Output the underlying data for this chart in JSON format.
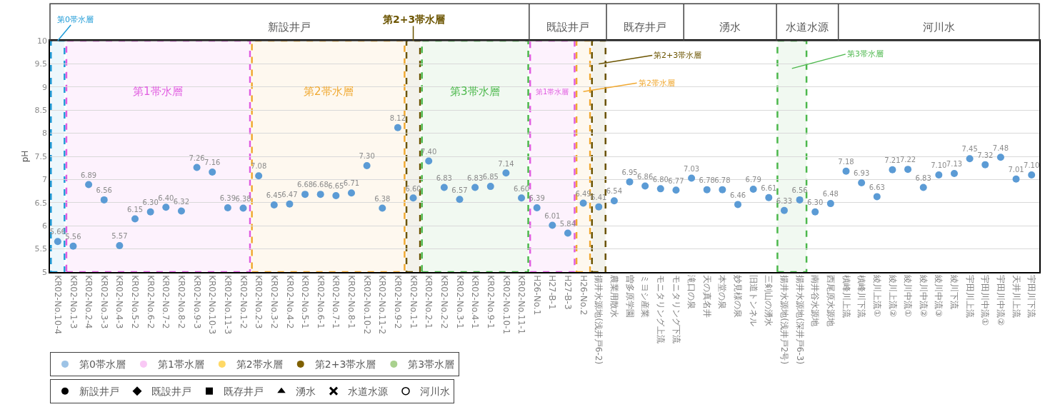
{
  "chart_data": {
    "type": "scatter",
    "ylabel": "pH",
    "categories": [
      "KR02-No.10-4",
      "KR02-No.1-3",
      "KR02-No.2-4",
      "KR02-No.3-3",
      "KR02-No.4-3",
      "KR02-No.5-2",
      "KR02-No.6-2",
      "KR02-No.7-2",
      "KR02-No.8-2",
      "KR02-No.9-3",
      "KR02-No.10-3",
      "KR02-No.11-3",
      "KR02-No.1-2",
      "KR02-No.2-3",
      "KR02-No.3-2",
      "KR02-No.4-2",
      "KR02-No.5-1",
      "KR02-No.6-1",
      "KR02-No.7-1",
      "KR02-No.8-1",
      "KR02-No.10-2",
      "KR02-No.11-2",
      "KR02-No.9-2",
      "KR02-No.1-1",
      "KR02-No.2-1",
      "KR02-No.2-2",
      "KR02-No.3-1",
      "KR02-No.4-1",
      "KR02-No.9-1",
      "KR02-No.10-1",
      "KR02-No.11-1",
      "H26-No.1",
      "H27-B-1",
      "H27-B-3",
      "H26-No.2",
      "揚井水源地(浅井戸6-2)",
      "農業用散水",
      "曽多原学園",
      "ミヨシ産業",
      "モニタリング上流",
      "モニタリング下流",
      "滝口の泉",
      "天の真名井",
      "本堂の泉",
      "妙見様の泉",
      "旧道トンネル",
      "三剣山の湧水",
      "揚井水源地(浅井戸2号)",
      "揚井水源地(深井戸6-3)",
      "南井谷水源地",
      "西尾原水源地",
      "槙峰川上流",
      "槙峰川下流",
      "綾川上流①",
      "綾川上流②",
      "綾川中流①",
      "綾川中流②",
      "綾川中流③",
      "綾川下流",
      "宇田川上流",
      "宇田川中流①",
      "宇田川中流②",
      "天井川上流",
      "宇田川下流"
    ],
    "series": [
      {
        "color": "#5b9bd5",
        "marker": "circle",
        "value_labels": [
          "5.66",
          "5.56",
          "6.89",
          "6.56",
          "5.57",
          "6.15",
          "6.30",
          "6.40",
          "6.32",
          "7.26",
          "7.16",
          "6.39",
          "6.38",
          "7.08",
          "6.45",
          "6.47",
          "6.68",
          "6.68",
          "6.65",
          "6.71",
          "7.30",
          "6.38",
          "8.12",
          "6.60",
          "7.40",
          "6.83",
          "6.57",
          "6.83",
          "6.85",
          "7.14",
          "6.60",
          "6.39",
          "6.01",
          "5.84",
          "6.49",
          "6.41",
          "6.54",
          "6.95",
          "6.86",
          "6.80",
          "6.77",
          "7.03",
          "6.78",
          "6.78",
          "6.46",
          "6.79",
          "6.61",
          "6.33",
          "6.56",
          "6.30",
          "6.48",
          "7.18",
          "6.93",
          "6.63",
          "7.21",
          "7.22",
          "6.83",
          "7.10",
          "7.13",
          "7.45",
          "7.32",
          "7.48",
          "7.01",
          "7.10"
        ],
        "values": [
          5.66,
          5.56,
          6.89,
          6.56,
          5.57,
          6.15,
          6.3,
          6.4,
          6.32,
          7.26,
          7.16,
          6.39,
          6.38,
          7.08,
          6.45,
          6.47,
          6.68,
          6.68,
          6.65,
          6.71,
          7.3,
          6.38,
          8.12,
          6.6,
          7.4,
          6.83,
          6.57,
          6.83,
          6.85,
          7.14,
          6.6,
          6.39,
          6.01,
          5.84,
          6.49,
          6.41,
          6.54,
          6.95,
          6.86,
          6.8,
          6.77,
          7.03,
          6.78,
          6.78,
          6.46,
          6.79,
          6.61,
          6.33,
          6.56,
          6.3,
          6.48,
          7.18,
          6.93,
          6.63,
          7.21,
          7.22,
          6.83,
          7.1,
          7.13,
          7.45,
          7.32,
          7.48,
          7.01,
          7.1
        ]
      },
      {
        "name": "第0帯水層",
        "color": "#9dc3e6",
        "marker": "circle",
        "values": [
          null,
          null,
          null,
          null,
          null,
          null,
          null,
          null,
          null,
          null,
          null,
          null,
          null,
          null,
          null,
          null,
          null,
          null,
          null,
          null,
          null,
          null,
          null,
          null,
          null,
          null,
          null,
          null,
          null,
          null,
          null,
          null,
          null,
          null,
          null,
          null,
          null,
          null,
          null,
          null,
          null,
          null,
          null,
          null,
          null,
          null,
          null,
          null,
          null,
          null,
          null,
          null,
          null,
          null,
          null,
          null,
          null,
          null,
          null,
          null,
          null,
          null,
          null,
          null
        ]
      },
      {
        "name": "第1帯水層",
        "color": "#f9c8f5",
        "marker": "circle",
        "values": [
          null,
          null,
          null,
          null,
          null,
          null,
          null,
          null,
          null,
          null,
          null,
          null,
          null,
          null,
          null,
          null,
          null,
          null,
          null,
          null,
          null,
          null,
          null,
          null,
          null,
          null,
          null,
          null,
          null,
          null,
          null,
          null,
          null,
          null,
          null,
          null,
          null,
          null,
          null,
          null,
          null,
          null,
          null,
          null,
          null,
          null,
          null,
          null,
          null,
          null,
          null,
          null,
          null,
          null,
          null,
          null,
          null,
          null,
          null,
          null,
          null,
          null,
          null,
          null
        ]
      },
      {
        "name": "第2帯水層",
        "color": "#ffd966",
        "marker": "circle",
        "values": [
          null,
          null,
          null,
          null,
          null,
          null,
          null,
          null,
          null,
          null,
          null,
          null,
          null,
          null,
          null,
          null,
          null,
          null,
          null,
          null,
          null,
          null,
          null,
          null,
          null,
          null,
          null,
          null,
          null,
          null,
          null,
          null,
          null,
          null,
          null,
          null,
          null,
          null,
          null,
          null,
          null,
          null,
          null,
          null,
          null,
          null,
          null,
          null,
          null,
          null,
          null,
          null,
          null,
          null,
          null,
          null,
          null,
          null,
          null,
          null,
          null,
          null,
          null,
          null
        ]
      },
      {
        "name": "第2+3帯水層",
        "color": "#7f6000",
        "marker": "circle",
        "values": [
          null,
          null,
          null,
          null,
          null,
          null,
          null,
          null,
          null,
          null,
          null,
          null,
          null,
          null,
          null,
          null,
          null,
          null,
          null,
          null,
          null,
          null,
          null,
          null,
          null,
          null,
          null,
          null,
          null,
          null,
          null,
          null,
          null,
          null,
          null,
          null,
          null,
          null,
          null,
          null,
          null,
          null,
          null,
          null,
          null,
          null,
          null,
          null,
          null,
          null,
          null,
          null,
          null,
          null,
          null,
          null,
          null,
          null,
          null,
          null,
          null,
          null,
          null,
          null
        ]
      },
      {
        "name": "第3帯水層",
        "color": "#a9d18e",
        "marker": "circle",
        "values": [
          null,
          null,
          null,
          null,
          null,
          null,
          null,
          null,
          null,
          null,
          null,
          null,
          null,
          null,
          null,
          null,
          null,
          null,
          null,
          null,
          null,
          null,
          null,
          null,
          null,
          null,
          null,
          null,
          null,
          null,
          null,
          null,
          null,
          null,
          null,
          null,
          null,
          null,
          null,
          null,
          null,
          null,
          null,
          null,
          null,
          null,
          null,
          null,
          null,
          null,
          null,
          null,
          null,
          null,
          null,
          null,
          null,
          null,
          null,
          null,
          null,
          null,
          null,
          null
        ]
      },
      {
        "name": "新設井戸",
        "color": "#000000",
        "marker": "circle",
        "values": [
          null,
          null,
          null,
          null,
          null,
          null,
          null,
          null,
          null,
          null,
          null,
          null,
          null,
          null,
          null,
          null,
          null,
          null,
          null,
          null,
          null,
          null,
          null,
          null,
          null,
          null,
          null,
          null,
          null,
          null,
          null,
          null,
          null,
          null,
          null,
          null,
          null,
          null,
          null,
          null,
          null,
          null,
          null,
          null,
          null,
          null,
          null,
          null,
          null,
          null,
          null,
          null,
          null,
          null,
          null,
          null,
          null,
          null,
          null,
          null,
          null,
          null,
          null,
          null
        ]
      },
      {
        "name": "既設井戸",
        "color": "#000000",
        "marker": "diamond",
        "values": [
          null,
          null,
          null,
          null,
          null,
          null,
          null,
          null,
          null,
          null,
          null,
          null,
          null,
          null,
          null,
          null,
          null,
          null,
          null,
          null,
          null,
          null,
          null,
          null,
          null,
          null,
          null,
          null,
          null,
          null,
          null,
          null,
          null,
          null,
          null,
          null,
          null,
          null,
          null,
          null,
          null,
          null,
          null,
          null,
          null,
          null,
          null,
          null,
          null,
          null,
          null,
          null,
          null,
          null,
          null,
          null,
          null,
          null,
          null,
          null,
          null,
          null,
          null,
          null
        ]
      },
      {
        "name": "既存井戸",
        "color": "#000000",
        "marker": "square",
        "values": [
          null,
          null,
          null,
          null,
          null,
          null,
          null,
          null,
          null,
          null,
          null,
          null,
          null,
          null,
          null,
          null,
          null,
          null,
          null,
          null,
          null,
          null,
          null,
          null,
          null,
          null,
          null,
          null,
          null,
          null,
          null,
          null,
          null,
          null,
          null,
          null,
          null,
          null,
          null,
          null,
          null,
          null,
          null,
          null,
          null,
          null,
          null,
          null,
          null,
          null,
          null,
          null,
          null,
          null,
          null,
          null,
          null,
          null,
          null,
          null,
          null,
          null,
          null,
          null
        ]
      },
      {
        "name": "湧水",
        "color": "#000000",
        "marker": "triangle",
        "values": [
          null,
          null,
          null,
          null,
          null,
          null,
          null,
          null,
          null,
          null,
          null,
          null,
          null,
          null,
          null,
          null,
          null,
          null,
          null,
          null,
          null,
          null,
          null,
          null,
          null,
          null,
          null,
          null,
          null,
          null,
          null,
          null,
          null,
          null,
          null,
          null,
          null,
          null,
          null,
          null,
          null,
          null,
          null,
          null,
          null,
          null,
          null,
          null,
          null,
          null,
          null,
          null,
          null,
          null,
          null,
          null,
          null,
          null,
          null,
          null,
          null,
          null,
          null,
          null
        ]
      },
      {
        "name": "水道水源",
        "color": "#000000",
        "marker": "cross",
        "values": [
          null,
          null,
          null,
          null,
          null,
          null,
          null,
          null,
          null,
          null,
          null,
          null,
          null,
          null,
          null,
          null,
          null,
          null,
          null,
          null,
          null,
          null,
          null,
          null,
          null,
          null,
          null,
          null,
          null,
          null,
          null,
          null,
          null,
          null,
          null,
          null,
          null,
          null,
          null,
          null,
          null,
          null,
          null,
          null,
          null,
          null,
          null,
          null,
          null,
          null,
          null,
          null,
          null,
          null,
          null,
          null,
          null,
          null,
          null,
          null,
          null,
          null,
          null,
          null
        ]
      },
      {
        "name": "河川水",
        "color": "#ffffff",
        "marker": "circle",
        "values": [
          null,
          null,
          null,
          null,
          null,
          null,
          null,
          null,
          null,
          null,
          null,
          null,
          null,
          null,
          null,
          null,
          null,
          null,
          null,
          null,
          null,
          null,
          null,
          null,
          null,
          null,
          null,
          null,
          null,
          null,
          null,
          null,
          null,
          null,
          null,
          null,
          null,
          null,
          null,
          null,
          null,
          null,
          null,
          null,
          null,
          null,
          null,
          null,
          null,
          null,
          null,
          null,
          null,
          null,
          null,
          null,
          null,
          null,
          null,
          null,
          null,
          null,
          null,
          null
        ]
      }
    ],
    "annotations": [
      "新設井戸",
      "既設井戸",
      "既存井戸",
      "湧水",
      "水道水源",
      "河川水"
    ],
    "bands": [
      {
        "axis": "x",
        "from": "KR02-No.10-4",
        "to": "KR02-No.10-4",
        "label": "第0帯水層",
        "color": "#1f9bd7"
      },
      {
        "axis": "x",
        "from": "KR02-No.1-3",
        "to": "KR02-No.1-2",
        "label": "第1帯水層",
        "color": "#e05ce0"
      },
      {
        "axis": "x",
        "from": "KR02-No.2-3",
        "to": "KR02-No.9-2",
        "label": "第2帯水層",
        "color": "#f0a830"
      },
      {
        "axis": "x",
        "from": "KR02-No.1-1",
        "to": "KR02-No.1-1",
        "label": "第2+3帯水層",
        "color": "#6b5400"
      },
      {
        "axis": "x",
        "from": "KR02-No.2-1",
        "to": "KR02-No.11-1",
        "label": "第3帯水層",
        "color": "#4cb84c"
      },
      {
        "axis": "x",
        "from": "H26-No.1",
        "to": "H27-B-3",
        "label": "第1帯水層",
        "color": "#e05ce0"
      },
      {
        "axis": "x",
        "from": "H26-No.2",
        "to": "H26-No.2",
        "label": "第2帯水層",
        "color": "#f0a830"
      },
      {
        "axis": "x",
        "from": "揚井水源地(浅井戸6-2)",
        "to": "揚井水源地(浅井戸6-2)",
        "label": "第2+3帯水層",
        "color": "#6b5400"
      },
      {
        "axis": "x",
        "from": "揚井水源地(浅井戸2号)",
        "to": "揚井水源地(深井戸6-3)",
        "label": "第3帯水層",
        "color": "#4cb84c"
      }
    ],
    "ylim": [
      5,
      10
    ],
    "yticks": [
      5,
      5.5,
      6,
      6.5,
      7,
      7.5,
      8,
      8.5,
      9,
      9.5,
      10
    ],
    "grid": "y",
    "legend": "bottom left"
  }
}
